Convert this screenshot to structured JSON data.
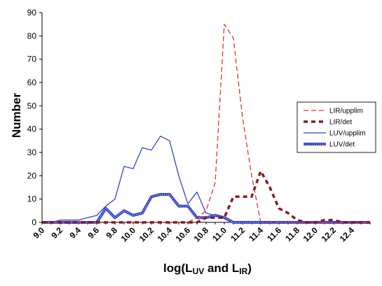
{
  "chart_data": {
    "type": "line",
    "xlabel": {
      "base": "log(L",
      "sub1": "UV",
      "mid": " and L",
      "sub2": "IR",
      "end": ")"
    },
    "ylabel": "Number",
    "ylim": [
      0,
      90
    ],
    "yticks": [
      0,
      10,
      20,
      30,
      40,
      50,
      60,
      70,
      80,
      90
    ],
    "xlim": [
      9.0,
      12.6
    ],
    "xticks": [
      "9.0",
      "9.2",
      "9.4",
      "9.6",
      "9.8",
      "10.0",
      "10.2",
      "10.4",
      "10.6",
      "10.8",
      "11.0",
      "11.2",
      "11.4",
      "11.6",
      "11.8",
      "12.0",
      "12.2",
      "12.4"
    ],
    "x": [
      9.0,
      9.1,
      9.2,
      9.3,
      9.4,
      9.5,
      9.6,
      9.7,
      9.8,
      9.9,
      10.0,
      10.1,
      10.2,
      10.3,
      10.4,
      10.5,
      10.6,
      10.7,
      10.8,
      10.9,
      11.0,
      11.1,
      11.2,
      11.3,
      11.4,
      11.5,
      11.6,
      11.7,
      11.8,
      11.9,
      12.0,
      12.1,
      12.2,
      12.3,
      12.4,
      12.5,
      12.6
    ],
    "grid": false,
    "legend_position": "right",
    "series": [
      {
        "name": "LIR/upplim",
        "color": "#e03030",
        "style": "dashed",
        "values": [
          0,
          0,
          0,
          0,
          0,
          0,
          0,
          0,
          0,
          0,
          0,
          0,
          0,
          0,
          0,
          0,
          0,
          2,
          5,
          17,
          85,
          79,
          45,
          20,
          0,
          0,
          0,
          0,
          0,
          0,
          0,
          0,
          0,
          0,
          0,
          0,
          0
        ]
      },
      {
        "name": "LIR/det",
        "color": "#8b1a1a",
        "style": "thick-dashed",
        "values": [
          0,
          0,
          0,
          0,
          0,
          0,
          0,
          0,
          0,
          0,
          0,
          0,
          0,
          0,
          0,
          0,
          0,
          0,
          2,
          2,
          2,
          11,
          11,
          11,
          22,
          15,
          6,
          4,
          1,
          0,
          0,
          1,
          1,
          0,
          0,
          0,
          0
        ]
      },
      {
        "name": "LUV/upplim",
        "color": "#3344cc",
        "style": "solid",
        "values": [
          0,
          0,
          1,
          1,
          1,
          2,
          3,
          7,
          10,
          24,
          23,
          32,
          31,
          37,
          35,
          20,
          8,
          13,
          4,
          3,
          2,
          0,
          0,
          0,
          0,
          0,
          0,
          0,
          0,
          0,
          0,
          0,
          0,
          0,
          0,
          0,
          0
        ]
      },
      {
        "name": "LUV/det",
        "color": "#3344cc",
        "style": "thick-marker",
        "values": [
          0,
          0,
          0,
          0,
          0,
          0,
          0,
          6,
          2,
          5,
          3,
          4,
          11,
          12,
          12,
          7,
          7,
          2,
          2,
          3,
          2,
          0,
          0,
          0,
          0,
          0,
          0,
          0,
          0,
          0,
          0,
          0,
          0,
          0,
          0,
          0,
          0
        ]
      }
    ]
  }
}
